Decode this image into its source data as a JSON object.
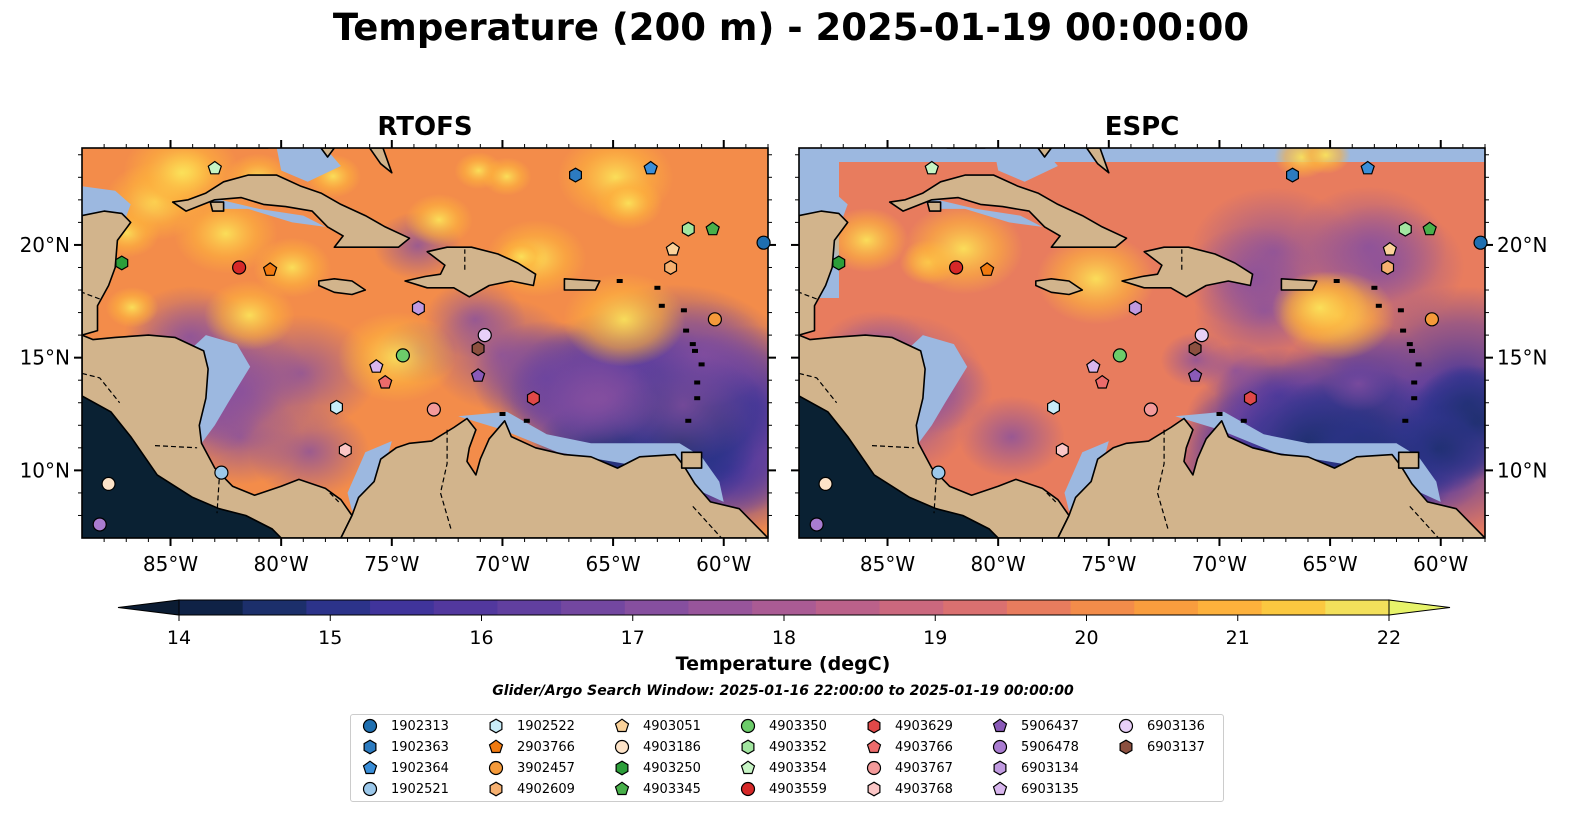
{
  "title": "Temperature (200 m) - 2025-01-19 00:00:00",
  "panels": [
    {
      "title": "RTOFS",
      "key": "rtofs"
    },
    {
      "title": "ESPC",
      "key": "espc"
    }
  ],
  "map": {
    "lon_range": [
      -89,
      -58
    ],
    "lat_range": [
      7,
      24.3
    ],
    "lon_ticks": [
      {
        "value": -85,
        "label": "85°W"
      },
      {
        "value": -80,
        "label": "80°W"
      },
      {
        "value": -75,
        "label": "75°W"
      },
      {
        "value": -70,
        "label": "70°W"
      },
      {
        "value": -65,
        "label": "65°W"
      },
      {
        "value": -60,
        "label": "60°W"
      }
    ],
    "lat_ticks": [
      {
        "value": 10,
        "label": "10°N"
      },
      {
        "value": 15,
        "label": "15°N"
      },
      {
        "value": 20,
        "label": "20°N"
      }
    ],
    "land_color": "#d2b48c",
    "shelf_color": "#9cb8e0"
  },
  "colorbar": {
    "label": "Temperature (degC)",
    "min": 14,
    "max": 22,
    "step": 0.5,
    "ticks": [
      14,
      15,
      16,
      17,
      18,
      19,
      20,
      21,
      22
    ],
    "colors": [
      "#0f2246",
      "#1c2f6b",
      "#2c338a",
      "#40349b",
      "#52389e",
      "#613f9f",
      "#7347a0",
      "#864f9f",
      "#98559b",
      "#aa5b94",
      "#bb618a",
      "#cb687e",
      "#da7070",
      "#e87c5e",
      "#f38c4a",
      "#f99d3e",
      "#fdb13c",
      "#fbc840",
      "#f3e05b"
    ],
    "under_color": "#0b1c33",
    "over_color": "#e7f36a"
  },
  "search_window": "Glider/Argo Search Window: 2025-01-16 22:00:00 to 2025-01-19 00:00:00",
  "floats": [
    {
      "id": "1902313",
      "marker": "circle",
      "color": "#1f6fb0",
      "lon": -58.2,
      "lat": 20.1
    },
    {
      "id": "1902363",
      "marker": "hexagon",
      "color": "#2c7bc0",
      "lon": -66.7,
      "lat": 23.1
    },
    {
      "id": "1902364",
      "marker": "pentagon",
      "color": "#3a8ed8",
      "lon": -63.3,
      "lat": 23.4
    },
    {
      "id": "1902521",
      "marker": "circle",
      "color": "#9cc8ea",
      "lon": -82.7,
      "lat": 9.9
    },
    {
      "id": "1902522",
      "marker": "hexagon",
      "color": "#c8ecf8",
      "lon": -77.5,
      "lat": 12.8
    },
    {
      "id": "2903766",
      "marker": "pentagon",
      "color": "#f07a10",
      "lon": -80.5,
      "lat": 18.9
    },
    {
      "id": "3902457",
      "marker": "circle",
      "color": "#f59a3a",
      "lon": -60.4,
      "lat": 16.7
    },
    {
      "id": "4902609",
      "marker": "hexagon",
      "color": "#f6b070",
      "lon": -62.4,
      "lat": 19.0
    },
    {
      "id": "4903051",
      "marker": "pentagon",
      "color": "#fbd29a",
      "lon": -62.3,
      "lat": 19.8
    },
    {
      "id": "4903186",
      "marker": "circle",
      "color": "#fde3c8",
      "lon": -87.8,
      "lat": 9.4
    },
    {
      "id": "4903250",
      "marker": "hexagon",
      "color": "#2c9e3a",
      "lon": -87.2,
      "lat": 19.2
    },
    {
      "id": "4903345",
      "marker": "pentagon",
      "color": "#48b04a",
      "lon": -60.5,
      "lat": 20.7
    },
    {
      "id": "4903350",
      "marker": "circle",
      "color": "#6ccc6a",
      "lon": -74.5,
      "lat": 15.1
    },
    {
      "id": "4903352",
      "marker": "hexagon",
      "color": "#a2e6a0",
      "lon": -61.6,
      "lat": 20.7
    },
    {
      "id": "4903354",
      "marker": "pentagon",
      "color": "#c6f4c4",
      "lon": -83.0,
      "lat": 23.4
    },
    {
      "id": "4903559",
      "marker": "circle",
      "color": "#d62828",
      "lon": -81.9,
      "lat": 19.0
    },
    {
      "id": "4903629",
      "marker": "hexagon",
      "color": "#e04848",
      "lon": -68.6,
      "lat": 13.2
    },
    {
      "id": "4903766",
      "marker": "pentagon",
      "color": "#ec6b6b",
      "lon": -75.3,
      "lat": 13.9
    },
    {
      "id": "4903767",
      "marker": "circle",
      "color": "#f39a9a",
      "lon": -73.1,
      "lat": 12.7
    },
    {
      "id": "4903768",
      "marker": "hexagon",
      "color": "#fbc6c6",
      "lon": -77.1,
      "lat": 10.9
    },
    {
      "id": "5906437",
      "marker": "pentagon",
      "color": "#8a5ab8",
      "lon": -71.1,
      "lat": 14.2
    },
    {
      "id": "5906478",
      "marker": "circle",
      "color": "#a97cd0",
      "lon": -88.2,
      "lat": 7.6
    },
    {
      "id": "6903134",
      "marker": "hexagon",
      "color": "#c09ae0",
      "lon": -73.8,
      "lat": 17.2
    },
    {
      "id": "6903135",
      "marker": "pentagon",
      "color": "#d8b6ee",
      "lon": -75.7,
      "lat": 14.6
    },
    {
      "id": "6903136",
      "marker": "circle",
      "color": "#e8d0f8",
      "lon": -70.8,
      "lat": 16.0
    },
    {
      "id": "6903137",
      "marker": "hexagon",
      "color": "#8c5040",
      "lon": -71.1,
      "lat": 15.4
    }
  ]
}
